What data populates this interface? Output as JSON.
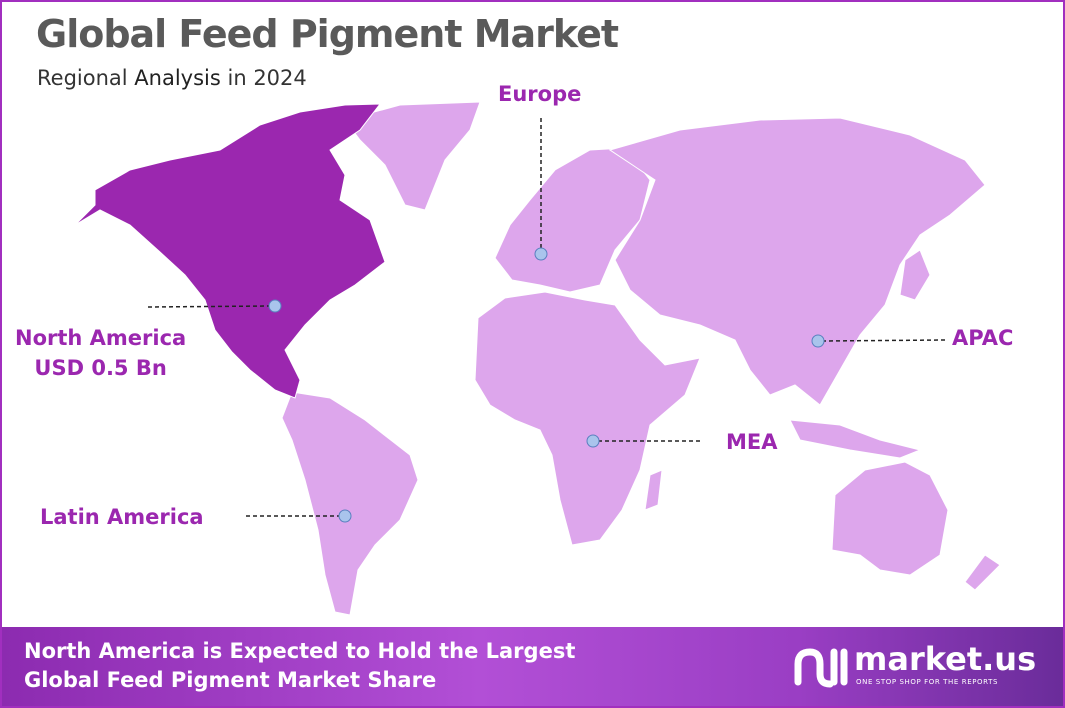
{
  "header": {
    "title": "Global Feed Pigment Market",
    "subtitle_prefix": "Regional",
    "subtitle_bold": "Analysis",
    "subtitle_suffix": "in 2024"
  },
  "colors": {
    "highlight": "#9b27af",
    "other_regions": "#dda6ec",
    "marker": "#a9c4ec",
    "title": "#5a5a5a"
  },
  "regions": {
    "north_america": {
      "label": "North America",
      "value": "USD 0.5 Bn",
      "highlighted": true
    },
    "europe": {
      "label": "Europe"
    },
    "apac": {
      "label": "APAC"
    },
    "mea": {
      "label": "MEA"
    },
    "latin_america": {
      "label": "Latin America"
    }
  },
  "banner": {
    "line1": "North America is Expected to Hold the Largest",
    "line2": "Global Feed Pigment Market Share"
  },
  "logo": {
    "name": "market.us",
    "tagline": "ONE STOP SHOP FOR THE REPORTS"
  }
}
